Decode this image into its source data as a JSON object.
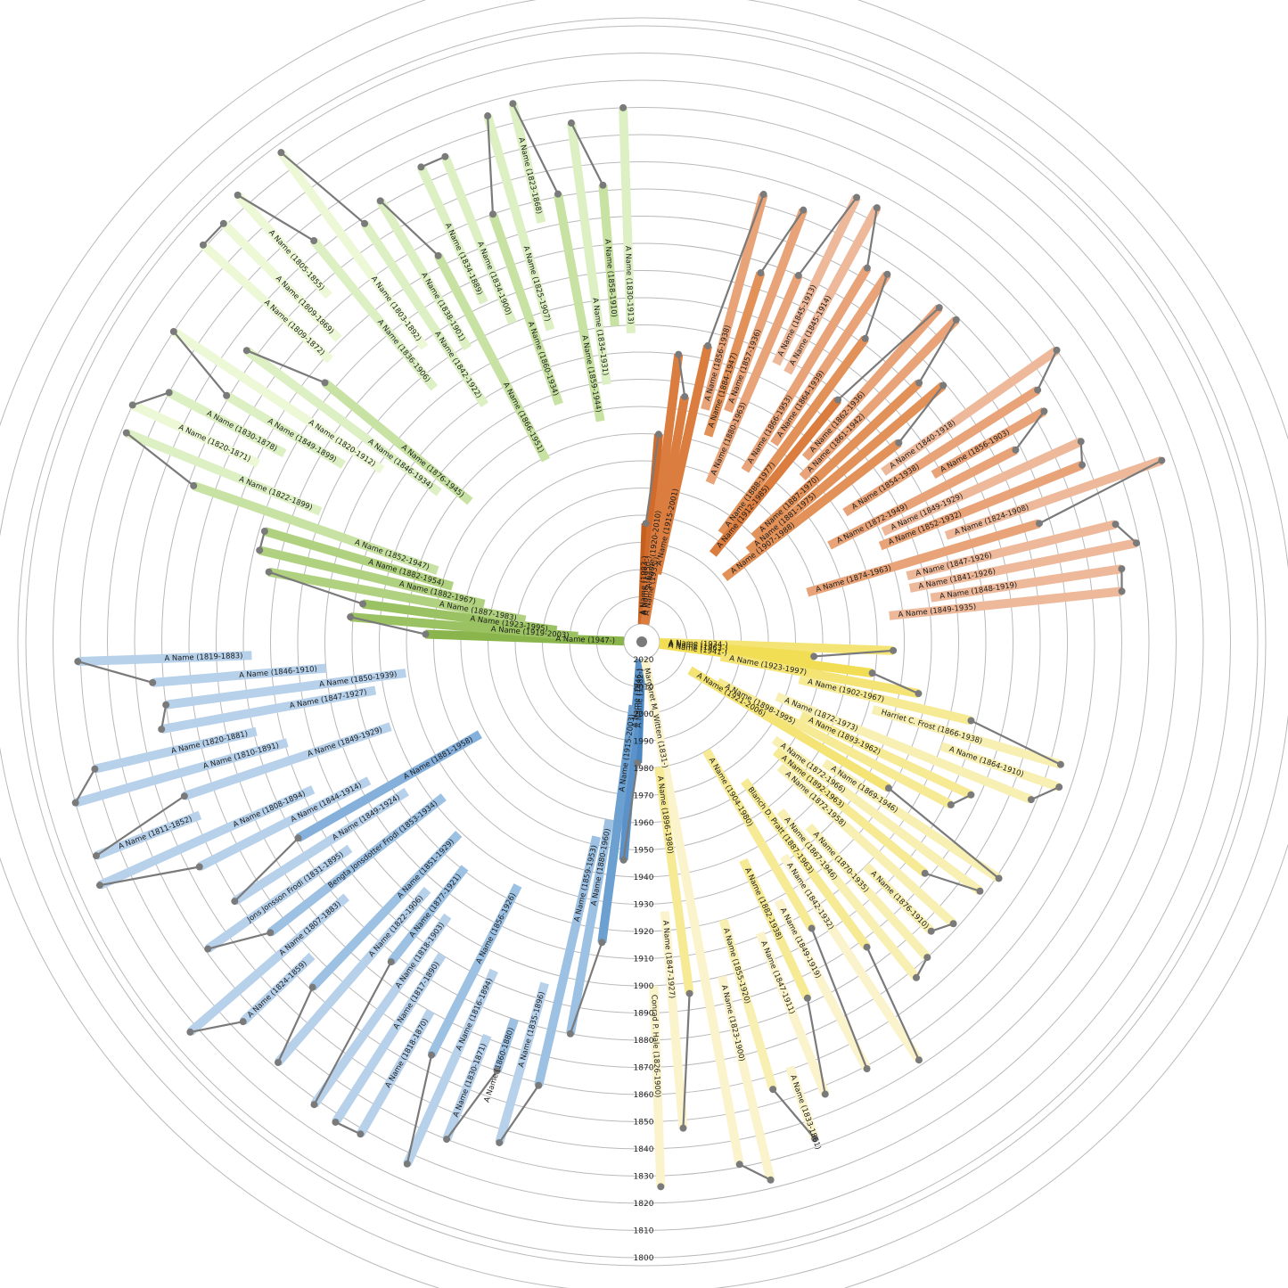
{
  "year_ticks": [
    "1800",
    "1810",
    "1820",
    "1830",
    "1840",
    "1850",
    "1860",
    "1870",
    "1880",
    "1890",
    "1900",
    "1910",
    "1920",
    "1930",
    "1940",
    "1950",
    "1960",
    "1970",
    "1980",
    "1990",
    "2000",
    "2010",
    "2020"
  ],
  "colors": {
    "link": "#7a7a7a",
    "ring": "#b9b9b9",
    "orange": [
      "#c45f1d",
      "#d06b2b",
      "#da7d3f",
      "#e29158",
      "#e8a378",
      "#eeb99a",
      "#f2cfb8"
    ],
    "green": [
      "#7aa83a",
      "#8ab54c",
      "#9bc262",
      "#b0d17f",
      "#c7e2a2",
      "#ddf0c4",
      "#ecf8d6"
    ],
    "blue": [
      "#4a86c2",
      "#5a92c9",
      "#6ca0d1",
      "#85b0db",
      "#9dc1e3",
      "#b7d1eb"
    ],
    "yellow": [
      "#f1da40",
      "#f2de55",
      "#f4e476",
      "#f6ea95",
      "#f8efb3",
      "#faf3cb"
    ]
  },
  "people": [
    {
      "label": "A Name (1982-)",
      "group": "blue"
    },
    {
      "label": "A Name (1983-)",
      "group": "orange"
    },
    {
      "label": "A Name (1946-)",
      "group": "blue"
    },
    {
      "label": "A Name (1947-)",
      "group": "green"
    },
    {
      "label": "A Name (1950-)",
      "group": "orange"
    },
    {
      "label": "A Name (1920-2010)",
      "group": "orange"
    },
    {
      "label": "A Name (1935-)",
      "group": "orange"
    },
    {
      "label": "A Name (1915-2001)",
      "group": "orange"
    },
    {
      "label": "A Name (1934-)",
      "group": "yellow"
    },
    {
      "label": "A Name (1963-)",
      "group": "yellow"
    },
    {
      "label": "A Name (1941-)",
      "group": "yellow"
    },
    {
      "label": "A Name (1915-2003)",
      "group": "blue"
    },
    {
      "label": "A Name (1919-2003)",
      "group": "green"
    },
    {
      "label": "A Name (1923-1995)",
      "group": "green"
    },
    {
      "label": "A Name (1887-1983)",
      "group": "green"
    },
    {
      "label": "A Name (1882-1967)",
      "group": "green"
    },
    {
      "label": "A Name (1880-1960)",
      "group": "blue"
    },
    {
      "label": "A Name (1859-1953)",
      "group": "blue"
    },
    {
      "label": "A Name (1882-1954)",
      "group": "green"
    },
    {
      "label": "A Name (1852-1947)",
      "group": "green"
    },
    {
      "label": "A Name (1822-1899)",
      "group": "green"
    },
    {
      "label": "A Name (1820-1871)",
      "group": "green"
    },
    {
      "label": "A Name (1830-1878)",
      "group": "green"
    },
    {
      "label": "A Name (1849-1899)",
      "group": "green"
    },
    {
      "label": "A Name (1820-1912)",
      "group": "green"
    },
    {
      "label": "A Name (1846-1934)",
      "group": "green"
    },
    {
      "label": "A Name (1876-1945)",
      "group": "green"
    },
    {
      "label": "A Name (1809-1872)",
      "group": "green"
    },
    {
      "label": "A Name (1809-1869)",
      "group": "green"
    },
    {
      "label": "A Name (1805-1855)",
      "group": "green"
    },
    {
      "label": "A Name (1836-1906)",
      "group": "green"
    },
    {
      "label": "A Name (1803-1892)",
      "group": "green"
    },
    {
      "label": "A Name (1842-1922)",
      "group": "green"
    },
    {
      "label": "A Name (1838-1901)",
      "group": "green"
    },
    {
      "label": "A Name (1866-1951)",
      "group": "green"
    },
    {
      "label": "A Name (1834-1889)",
      "group": "green"
    },
    {
      "label": "A Name (1834-1900)",
      "group": "green"
    },
    {
      "label": "A Name (1860-1934)",
      "group": "green"
    },
    {
      "label": "A Name (1825-1907)",
      "group": "green"
    },
    {
      "label": "A Name (1823-1868)",
      "group": "green"
    },
    {
      "label": "A Name (1859-1944)",
      "group": "green"
    },
    {
      "label": "A Name (1834-1931)",
      "group": "green"
    },
    {
      "label": "A Name (1858-1910)",
      "group": "green"
    },
    {
      "label": "A Name (1830-1913)",
      "group": "green"
    },
    {
      "label": "A Name (1835-1896)",
      "group": "blue"
    },
    {
      "label": "A Name (1860-1880)",
      "group": "blue"
    },
    {
      "label": "A Name (1830-1871)",
      "group": "blue"
    },
    {
      "label": "A Name (1816-1894)",
      "group": "blue"
    },
    {
      "label": "A Name (1856-1926)",
      "group": "blue"
    },
    {
      "label": "A Name (1818-1870)",
      "group": "blue"
    },
    {
      "label": "A Name (1817-1890)",
      "group": "blue"
    },
    {
      "label": "A Name (1818-1903)",
      "group": "blue"
    },
    {
      "label": "A Name (1877-1921)",
      "group": "blue"
    },
    {
      "label": "A Name (1822-1906)",
      "group": "blue"
    },
    {
      "label": "A Name (1851-1929)",
      "group": "blue"
    },
    {
      "label": "A Name (1824-1859)",
      "group": "blue"
    },
    {
      "label": "A Name (1807-1883)",
      "group": "blue"
    },
    {
      "label": "Bengta Jonsdotter Frodi (1853-1934)",
      "group": "blue"
    },
    {
      "label": "Jons Jonsson Frodi (1831-1895)",
      "group": "blue"
    },
    {
      "label": "A Name (1849-1924)",
      "group": "blue"
    },
    {
      "label": "A Name (1881-1958)",
      "group": "blue"
    },
    {
      "label": "A Name (1844-1914)",
      "group": "blue"
    },
    {
      "label": "A Name (1808-1894)",
      "group": "blue"
    },
    {
      "label": "A Name (1811-1852)",
      "group": "blue"
    },
    {
      "label": "A Name (1849-1929)",
      "group": "blue"
    },
    {
      "label": "A Name (1810-1891)",
      "group": "blue"
    },
    {
      "label": "A Name (1820-1881)",
      "group": "blue"
    },
    {
      "label": "A Name (1847-1927)",
      "group": "blue"
    },
    {
      "label": "A Name (1850-1939)",
      "group": "blue"
    },
    {
      "label": "A Name (1846-1910)",
      "group": "blue"
    },
    {
      "label": "A Name (1819-1883)",
      "group": "blue"
    },
    {
      "label": "A Name (1923-1997)",
      "group": "yellow"
    },
    {
      "label": "A Name (1902-1967)",
      "group": "yellow"
    },
    {
      "label": "Harriet C. Frost (1866-1938)",
      "group": "yellow"
    },
    {
      "label": "A Name (1864-1910)",
      "group": "yellow"
    },
    {
      "label": "A Name (1872-1973)",
      "group": "yellow"
    },
    {
      "label": "A Name (1893-1962)",
      "group": "yellow"
    },
    {
      "label": "A Name (1898-1995)",
      "group": "yellow"
    },
    {
      "label": "A Name (1921-2006)",
      "group": "yellow"
    },
    {
      "label": "A Name (1869-1946)",
      "group": "yellow"
    },
    {
      "label": "A Name (1872-1966)",
      "group": "yellow"
    },
    {
      "label": "A Name (1892-1963)",
      "group": "yellow"
    },
    {
      "label": "A Name (1872-1958)",
      "group": "yellow"
    },
    {
      "label": "A Name (1876-1910)",
      "group": "yellow"
    },
    {
      "label": "A Name (1870-1935)",
      "group": "yellow"
    },
    {
      "label": "A Name (1867-1946)",
      "group": "yellow"
    },
    {
      "label": "Blanch D. Pratt (1887-1963)",
      "group": "yellow"
    },
    {
      "label": "A Name (1842-1932)",
      "group": "yellow"
    },
    {
      "label": "A Name (1904-1980)",
      "group": "yellow"
    },
    {
      "label": "A Name (1849-1919)",
      "group": "yellow"
    },
    {
      "label": "A Name (1882-1938)",
      "group": "yellow"
    },
    {
      "label": "A Name (1847-1911)",
      "group": "yellow"
    },
    {
      "label": "A Name (1833-1861)",
      "group": "yellow"
    },
    {
      "label": "A Name (1855-1920)",
      "group": "yellow"
    },
    {
      "label": "A Name (1823-1900)",
      "group": "yellow"
    },
    {
      "label": "Margaret M. Witten (1831-)",
      "group": "yellow"
    },
    {
      "label": "A Name (1896-1980)",
      "group": "yellow"
    },
    {
      "label": "A Name (1847-1927)",
      "group": "yellow"
    },
    {
      "label": "Conrad P. Hale (1826-1900)",
      "group": "yellow"
    },
    {
      "label": "A Name (1856-1938)",
      "group": "orange"
    },
    {
      "label": "A Name (1884-1947)",
      "group": "orange"
    },
    {
      "label": "A Name (1857-1936)",
      "group": "orange"
    },
    {
      "label": "A Name (1880-1963)",
      "group": "orange"
    },
    {
      "label": "A Name (1845-1913)",
      "group": "orange"
    },
    {
      "label": "A Name (1845-1914)",
      "group": "orange"
    },
    {
      "label": "A Name (1866-1953)",
      "group": "orange"
    },
    {
      "label": "A Name (1864-1939)",
      "group": "orange"
    },
    {
      "label": "A Name (1888-1977)",
      "group": "orange"
    },
    {
      "label": "A Name (1912-1985)",
      "group": "orange"
    },
    {
      "label": "A Name (1862-1936)",
      "group": "orange"
    },
    {
      "label": "A Name (1861-1942)",
      "group": "orange"
    },
    {
      "label": "A Name (1887-1970)",
      "group": "orange"
    },
    {
      "label": "A Name (1881-1975)",
      "group": "orange"
    },
    {
      "label": "A Name (1907-1988)",
      "group": "orange"
    },
    {
      "label": "A Name (1840-1918)",
      "group": "orange"
    },
    {
      "label": "A Name (1854-1938)",
      "group": "orange"
    },
    {
      "label": "A Name (1856-1903)",
      "group": "orange"
    },
    {
      "label": "A Name (1872-1949)",
      "group": "orange"
    },
    {
      "label": "A Name (1849-1929)",
      "group": "orange"
    },
    {
      "label": "A Name (1852-1932)",
      "group": "orange"
    },
    {
      "label": "A Name (1824-1908)",
      "group": "orange"
    },
    {
      "label": "A Name (1874-1963)",
      "group": "orange"
    },
    {
      "label": "A Name (1847-1926)",
      "group": "orange"
    },
    {
      "label": "A Name (1841-1926)",
      "group": "orange"
    },
    {
      "label": "A Name (1848-1919)",
      "group": "orange"
    },
    {
      "label": "A Name (1849-1935)",
      "group": "orange"
    }
  ]
}
